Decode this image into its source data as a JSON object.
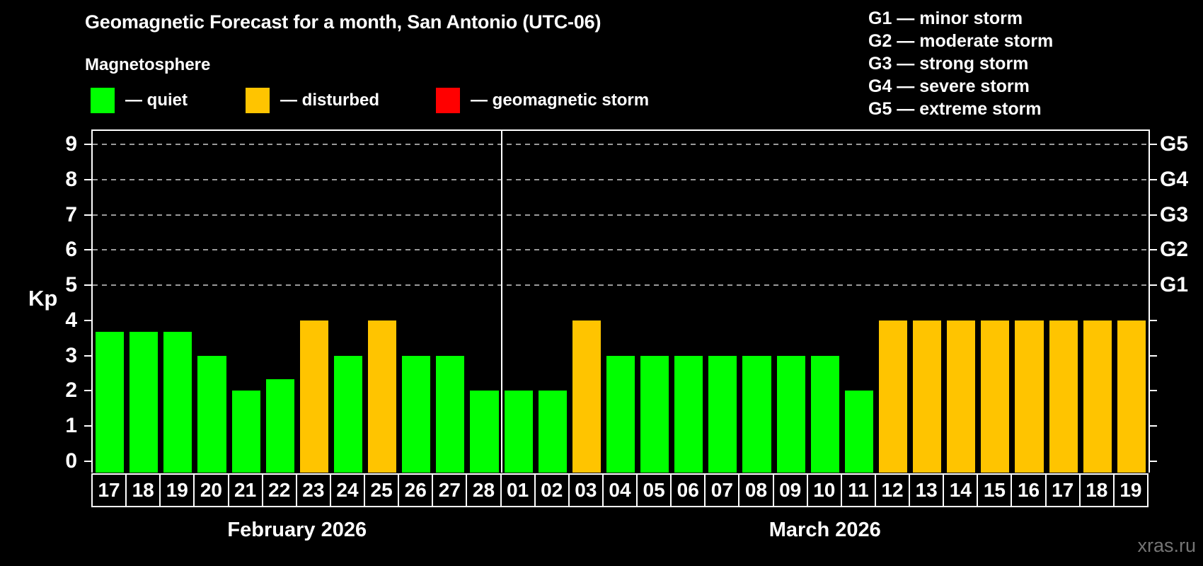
{
  "title": "Geomagnetic Forecast for a month, San Antonio (UTC-06)",
  "subtitle": "Magnetosphere",
  "legend": {
    "items": [
      {
        "label": "— quiet",
        "status": "quiet"
      },
      {
        "label": "— disturbed",
        "status": "disturbed"
      },
      {
        "label": "— geomagnetic storm",
        "status": "storm"
      }
    ]
  },
  "g_legend": {
    "items": [
      "G1 — minor storm",
      "G2 — moderate storm",
      "G3 — strong storm",
      "G4 — severe storm",
      "G5 — extreme storm"
    ]
  },
  "watermark": "xras.ru",
  "colors": {
    "background": "#000000",
    "axis": "#FFFFFF",
    "gridline": "#9A9A9A",
    "watermark_text": "#757575"
  },
  "chart_data": {
    "type": "bar",
    "ylabel": "Kp",
    "ylim": [
      0,
      9.4
    ],
    "yticks": [
      0,
      1,
      2,
      3,
      4,
      5,
      6,
      7,
      8,
      9
    ],
    "grid": "dashed horizontal lines at G-storm levels only",
    "legend_position": "top",
    "grid_levels": [
      {
        "value": 5,
        "label": "G1"
      },
      {
        "value": 6,
        "label": "G2"
      },
      {
        "value": 7,
        "label": "G3"
      },
      {
        "value": 8,
        "label": "G4"
      },
      {
        "value": 9,
        "label": "G5"
      }
    ],
    "bar_colors": {
      "quiet": "#00FF00",
      "disturbed": "#FFC400",
      "storm": "#FF0000"
    },
    "months": [
      {
        "label": "February 2026",
        "points": [
          {
            "day": "17",
            "value": 3.67,
            "status": "quiet"
          },
          {
            "day": "18",
            "value": 3.67,
            "status": "quiet"
          },
          {
            "day": "19",
            "value": 3.67,
            "status": "quiet"
          },
          {
            "day": "20",
            "value": 3,
            "status": "quiet"
          },
          {
            "day": "21",
            "value": 2,
            "status": "quiet"
          },
          {
            "day": "22",
            "value": 2.33,
            "status": "quiet"
          },
          {
            "day": "23",
            "value": 4,
            "status": "disturbed"
          },
          {
            "day": "24",
            "value": 3,
            "status": "quiet"
          },
          {
            "day": "25",
            "value": 4,
            "status": "disturbed"
          },
          {
            "day": "26",
            "value": 3,
            "status": "quiet"
          },
          {
            "day": "27",
            "value": 3,
            "status": "quiet"
          },
          {
            "day": "28",
            "value": 2,
            "status": "quiet"
          }
        ]
      },
      {
        "label": "March 2026",
        "points": [
          {
            "day": "01",
            "value": 2,
            "status": "quiet"
          },
          {
            "day": "02",
            "value": 2,
            "status": "quiet"
          },
          {
            "day": "03",
            "value": 4,
            "status": "disturbed"
          },
          {
            "day": "04",
            "value": 3,
            "status": "quiet"
          },
          {
            "day": "05",
            "value": 3,
            "status": "quiet"
          },
          {
            "day": "06",
            "value": 3,
            "status": "quiet"
          },
          {
            "day": "07",
            "value": 3,
            "status": "quiet"
          },
          {
            "day": "08",
            "value": 3,
            "status": "quiet"
          },
          {
            "day": "09",
            "value": 3,
            "status": "quiet"
          },
          {
            "day": "10",
            "value": 3,
            "status": "quiet"
          },
          {
            "day": "11",
            "value": 2,
            "status": "quiet"
          },
          {
            "day": "12",
            "value": 4,
            "status": "disturbed"
          },
          {
            "day": "13",
            "value": 4,
            "status": "disturbed"
          },
          {
            "day": "14",
            "value": 4,
            "status": "disturbed"
          },
          {
            "day": "15",
            "value": 4,
            "status": "disturbed"
          },
          {
            "day": "16",
            "value": 4,
            "status": "disturbed"
          },
          {
            "day": "17",
            "value": 4,
            "status": "disturbed"
          },
          {
            "day": "18",
            "value": 4,
            "status": "disturbed"
          },
          {
            "day": "19",
            "value": 4,
            "status": "disturbed"
          }
        ]
      }
    ]
  }
}
